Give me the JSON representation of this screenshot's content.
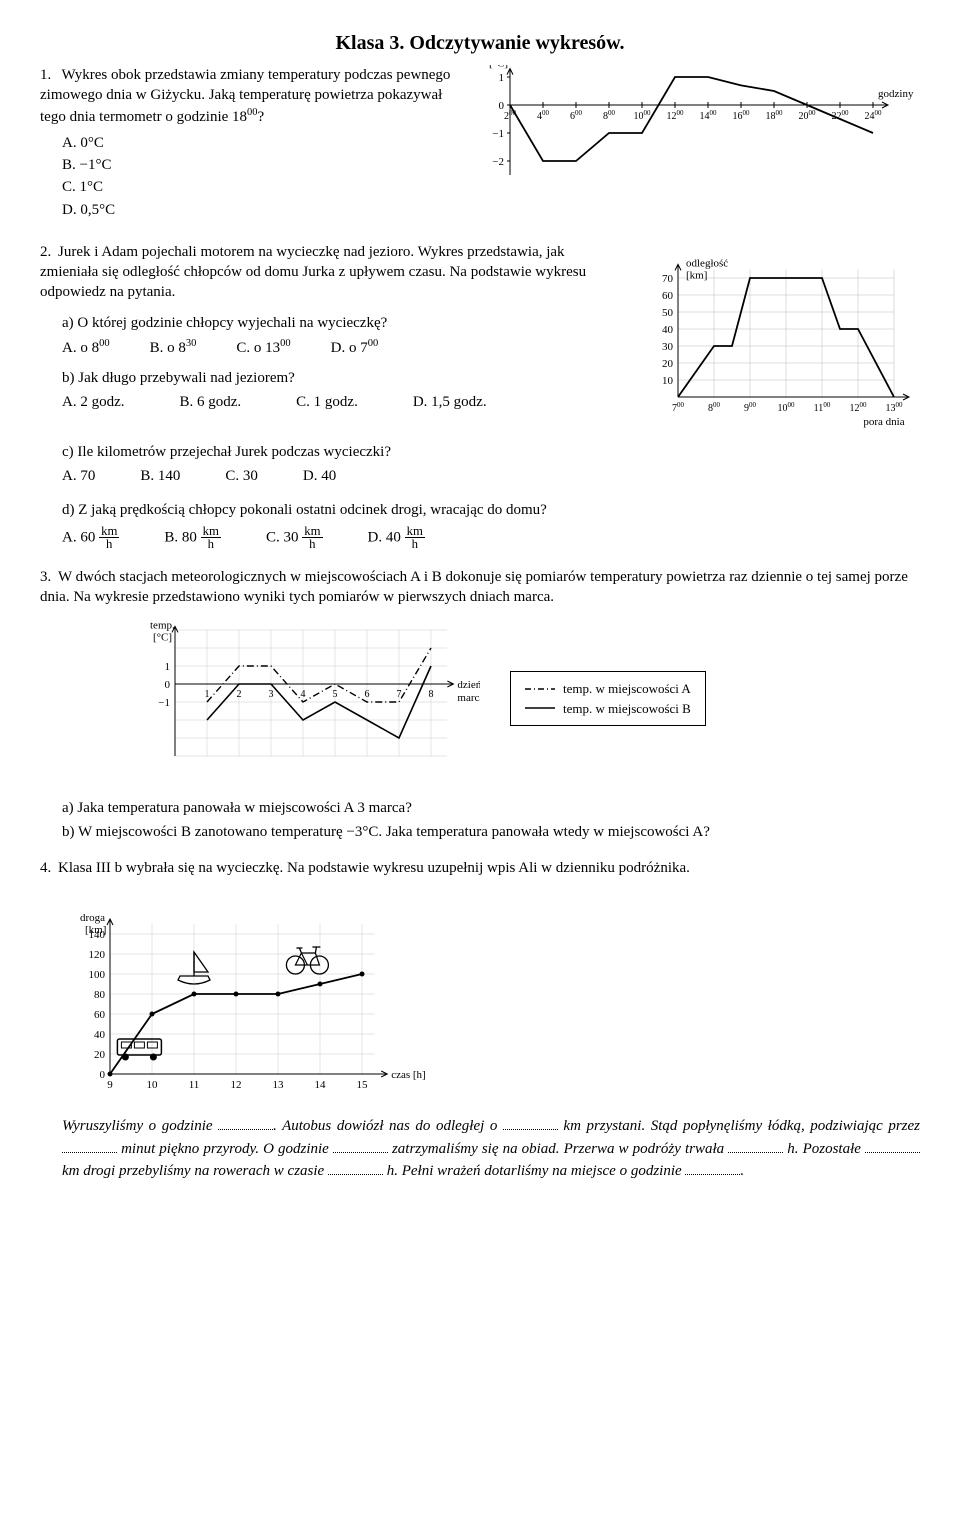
{
  "title": "Klasa 3. Odczytywanie wykresów.",
  "q1": {
    "num": "1.",
    "text": "Wykres obok przedstawia zmiany temperatury podczas pewnego zimowego dnia w Giżycku. Jaką temperaturę powietrza pokazywał tego dnia termometr o godzinie 18",
    "text_sup": "00",
    "text_after": "?",
    "opts": {
      "A": "A. 0°C",
      "B": "B. −1°C",
      "C": "C. 1°C",
      "D": "D. 0,5°C"
    },
    "chart": {
      "ylabel": "[°C]",
      "xlabel": "godziny",
      "xticks": [
        "2",
        "4",
        "6",
        "8",
        "10",
        "12",
        "14",
        "16",
        "18",
        "20",
        "22",
        "24"
      ],
      "yticks": [
        "1",
        "0",
        "−1",
        "−2"
      ],
      "points": [
        [
          2,
          0
        ],
        [
          4,
          -2
        ],
        [
          6,
          -2
        ],
        [
          8,
          -1
        ],
        [
          10,
          -1
        ],
        [
          12,
          1
        ],
        [
          14,
          1
        ],
        [
          16,
          0.7
        ],
        [
          18,
          0.5
        ],
        [
          20,
          0
        ],
        [
          22,
          -0.5
        ],
        [
          24,
          -1
        ]
      ],
      "line_color": "#000",
      "grid_color": "#999"
    }
  },
  "q2": {
    "num": "2.",
    "text": "Jurek i Adam pojechali motorem na wycieczkę nad jezioro. Wykres przedstawia, jak zmieniała się odległość chłopców od domu Jurka z upływem czasu. Na podstawie wykresu odpowiedz na pytania.",
    "a": {
      "q": "a) O której godzinie chłopcy wyjechali na wycieczkę?",
      "A": "A. o 8",
      "B": "B. o 8",
      "C": "C. o 13",
      "D": "D. o 7",
      "Asup": "00",
      "Bsup": "30",
      "Csup": "00",
      "Dsup": "00"
    },
    "b": {
      "q": "b) Jak długo przebywali nad jeziorem?",
      "A": "A. 2 godz.",
      "B": "B. 6 godz.",
      "C": "C. 1 godz.",
      "D": "D. 1,5 godz."
    },
    "c": {
      "q": "c) Ile kilometrów przejechał Jurek podczas wycieczki?",
      "A": "A. 70",
      "B": "B. 140",
      "C": "C. 30",
      "D": "D. 40"
    },
    "d": {
      "q": "d) Z jaką prędkością chłopcy pokonali ostatni odcinek drogi, wracając do domu?",
      "A": "A. 60",
      "B": "B. 80",
      "C": "C. 30",
      "D": "D. 40",
      "unit_n": "km",
      "unit_d": "h"
    },
    "chart": {
      "ylabel1": "odległość",
      "ylabel2": "[km]",
      "xlabel": "pora dnia",
      "xticks": [
        "7",
        "8",
        "9",
        "10",
        "11",
        "12",
        "13"
      ],
      "yticks": [
        "70",
        "60",
        "50",
        "40",
        "30",
        "20",
        "10"
      ],
      "points": [
        [
          7,
          0
        ],
        [
          8,
          30
        ],
        [
          8.5,
          30
        ],
        [
          9,
          70
        ],
        [
          11,
          70
        ],
        [
          11.5,
          40
        ],
        [
          12,
          40
        ],
        [
          13,
          0
        ]
      ],
      "grid_color": "#bbb",
      "line_color": "#000"
    }
  },
  "q3": {
    "num": "3.",
    "text": "W dwóch stacjach meteorologicznych w miejscowościach A i B dokonuje się pomiarów temperatury powietrza raz dziennie o tej samej porze dnia. Na wykresie przedstawiono wyniki tych pomiarów w pierwszych dniach marca.",
    "a": "a)  Jaka temperatura panowała w miejscowości A 3 marca?",
    "b": "b)  W miejscowości B zanotowano temperaturę −3°C. Jaka temperatura panowała wtedy w miejscowości A?",
    "chart": {
      "ylabel": "temp.",
      "ylabel2": "[°C]",
      "xlabel1": "dzień",
      "xlabel2": "marca",
      "xticks": [
        "1",
        "2",
        "3",
        "4",
        "5",
        "6",
        "7",
        "8"
      ],
      "yticks": [
        "1",
        "0",
        "−1"
      ],
      "seriesA": [
        [
          1,
          -1
        ],
        [
          2,
          1
        ],
        [
          3,
          1
        ],
        [
          4,
          -1
        ],
        [
          5,
          0
        ],
        [
          6,
          -1
        ],
        [
          7,
          -1
        ],
        [
          8,
          2
        ]
      ],
      "seriesB": [
        [
          1,
          -2
        ],
        [
          2,
          0
        ],
        [
          3,
          0
        ],
        [
          4,
          -2
        ],
        [
          5,
          -1
        ],
        [
          6,
          -2
        ],
        [
          7,
          -3
        ],
        [
          8,
          1
        ]
      ],
      "legendA": "temp. w miejscowości A",
      "legendB": "temp. w miejscowości B",
      "grid_color": "#ccc",
      "line_color": "#000"
    }
  },
  "q4": {
    "num": "4.",
    "text": "Klasa III b wybrała się na wycieczkę. Na podstawie wykresu uzupełnij wpis Ali w dzienniku podróżnika.",
    "chart": {
      "ylabel1": "droga",
      "ylabel2": "[km]",
      "xlabel": "czas [h]",
      "xticks": [
        "9",
        "10",
        "11",
        "12",
        "13",
        "14",
        "15"
      ],
      "yticks": [
        "140",
        "120",
        "100",
        "80",
        "60",
        "40",
        "20",
        "0"
      ],
      "points": [
        [
          9,
          0
        ],
        [
          10,
          60
        ],
        [
          11,
          80
        ],
        [
          12,
          80
        ],
        [
          13,
          80
        ],
        [
          14,
          90
        ],
        [
          15,
          100
        ]
      ],
      "grid_color": "#ccc",
      "line_color": "#000"
    },
    "story": {
      "p1a": "Wyruszyliśmy o godzinie",
      "p1b": ". Autobus dowiózł nas do odległej o",
      "p1c": "km przystani. Stąd popłynęliśmy łódką, podziwiając przez",
      "p1d": "minut piękno przyrody. O godzinie",
      "p1e": "zatrzymaliśmy się na obiad. Przerwa w podróży trwała",
      "p1f": "h. Pozostałe",
      "p1g": "km drogi przebyliśmy na rowerach w czasie",
      "p1h": "h. Pełni wrażeń dotarliśmy na miejsce o godzinie",
      "p1i": "."
    }
  }
}
